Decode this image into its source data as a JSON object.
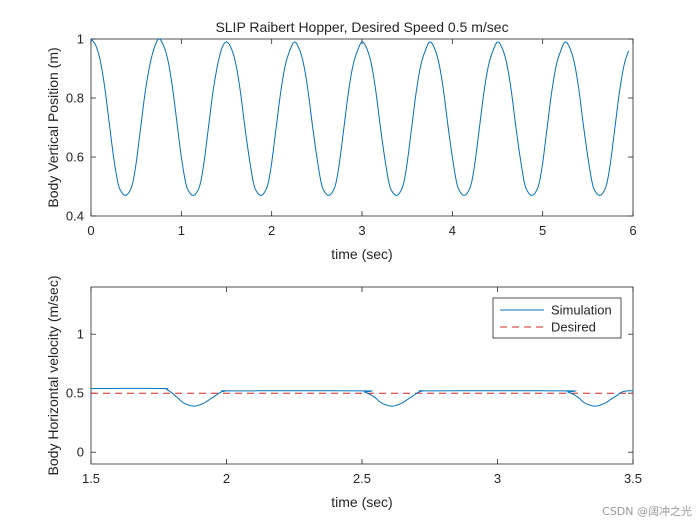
{
  "chart_data": [
    {
      "type": "line",
      "title": "SLIP Raibert Hopper, Desired Speed 0.5 m/sec",
      "xlabel": "time (sec)",
      "ylabel": "Body Vertical Position (m)",
      "xlim": [
        0,
        6
      ],
      "ylim": [
        0.4,
        1.0
      ],
      "xticks": [
        0,
        1,
        2,
        3,
        4,
        5,
        6
      ],
      "xtick_labels": [
        "0",
        "1",
        "2",
        "3",
        "4",
        "5",
        "6"
      ],
      "yticks": [
        0.4,
        0.6,
        0.8,
        1.0
      ],
      "ytick_labels": [
        "0.4",
        "0.6",
        "0.8",
        "1"
      ],
      "series": [
        {
          "name": "Body vertical position",
          "color": "#0072BD",
          "x": [
            0,
            0.05,
            0.1,
            0.15,
            0.2,
            0.25,
            0.3,
            0.34,
            0.38,
            0.42,
            0.46,
            0.5,
            0.55,
            0.6,
            0.65,
            0.7,
            0.75,
            0.8,
            0.85,
            0.9,
            0.95,
            1.0,
            1.05,
            1.09,
            1.13,
            1.17,
            1.21,
            1.25,
            1.3,
            1.35,
            1.4,
            1.45,
            1.5,
            1.55,
            1.6,
            1.65,
            1.7,
            1.75,
            1.8,
            1.84,
            1.88,
            1.92,
            1.96,
            2.0,
            2.05,
            2.1,
            2.15,
            2.2,
            2.25,
            2.3,
            2.35,
            2.4,
            2.45,
            2.5,
            2.55,
            2.59,
            2.63,
            2.67,
            2.71,
            2.75,
            2.8,
            2.85,
            2.9,
            2.95,
            3.0,
            3.05,
            3.1,
            3.15,
            3.2,
            3.25,
            3.3,
            3.34,
            3.38,
            3.42,
            3.46,
            3.5,
            3.55,
            3.6,
            3.65,
            3.7,
            3.75,
            3.8,
            3.85,
            3.9,
            3.95,
            4.0,
            4.05,
            4.09,
            4.13,
            4.17,
            4.21,
            4.25,
            4.3,
            4.35,
            4.4,
            4.45,
            4.5,
            4.55,
            4.6,
            4.65,
            4.7,
            4.75,
            4.8,
            4.84,
            4.88,
            4.92,
            4.96,
            5.0,
            5.05,
            5.1,
            5.15,
            5.2,
            5.25,
            5.3,
            5.35,
            5.4,
            5.45,
            5.5,
            5.55,
            5.59,
            5.63,
            5.67,
            5.71,
            5.75,
            5.8,
            5.85,
            5.9,
            5.95
          ],
          "y": [
            1.0,
            0.98,
            0.93,
            0.84,
            0.72,
            0.6,
            0.51,
            0.48,
            0.47,
            0.48,
            0.51,
            0.58,
            0.7,
            0.82,
            0.91,
            0.97,
            1.0,
            0.98,
            0.93,
            0.84,
            0.72,
            0.6,
            0.51,
            0.48,
            0.47,
            0.48,
            0.51,
            0.58,
            0.7,
            0.82,
            0.91,
            0.97,
            0.99,
            0.97,
            0.92,
            0.83,
            0.71,
            0.6,
            0.51,
            0.48,
            0.47,
            0.48,
            0.51,
            0.58,
            0.7,
            0.82,
            0.91,
            0.96,
            0.99,
            0.97,
            0.92,
            0.83,
            0.71,
            0.6,
            0.51,
            0.48,
            0.47,
            0.48,
            0.51,
            0.58,
            0.7,
            0.82,
            0.91,
            0.96,
            0.99,
            0.97,
            0.92,
            0.83,
            0.71,
            0.6,
            0.51,
            0.48,
            0.47,
            0.48,
            0.51,
            0.58,
            0.7,
            0.82,
            0.91,
            0.96,
            0.99,
            0.97,
            0.92,
            0.83,
            0.71,
            0.6,
            0.51,
            0.48,
            0.47,
            0.48,
            0.51,
            0.58,
            0.7,
            0.82,
            0.91,
            0.96,
            0.99,
            0.97,
            0.92,
            0.83,
            0.71,
            0.6,
            0.51,
            0.48,
            0.47,
            0.48,
            0.51,
            0.58,
            0.7,
            0.82,
            0.91,
            0.96,
            0.99,
            0.97,
            0.92,
            0.83,
            0.71,
            0.6,
            0.51,
            0.48,
            0.47,
            0.48,
            0.51,
            0.58,
            0.7,
            0.82,
            0.91,
            0.96
          ]
        }
      ]
    },
    {
      "type": "line",
      "title": "",
      "xlabel": "time (sec)",
      "ylabel": "Body Horizontal velocity (m/sec)",
      "xlim": [
        1.5,
        3.5
      ],
      "ylim": [
        -0.1,
        1.4
      ],
      "xticks": [
        1.5,
        2,
        2.5,
        3,
        3.5
      ],
      "xtick_labels": [
        "1.5",
        "2",
        "2.5",
        "3",
        "3.5"
      ],
      "yticks": [
        0,
        0.5,
        1
      ],
      "ytick_labels": [
        "0",
        "0.5",
        "1"
      ],
      "legend": {
        "position": "top-right",
        "entries": [
          "Simulation",
          "Desired"
        ]
      },
      "series": [
        {
          "name": "Simulation",
          "color": "#0072BD",
          "style": "solid",
          "x": [
            1.5,
            1.76,
            1.78,
            1.8,
            1.82,
            1.84,
            1.86,
            1.88,
            1.9,
            1.92,
            1.94,
            1.96,
            1.98,
            2.0,
            2.02,
            2.5,
            2.51,
            2.53,
            2.55,
            2.57,
            2.59,
            2.61,
            2.63,
            2.65,
            2.67,
            2.69,
            2.71,
            2.73,
            2.75,
            3.25,
            3.26,
            3.28,
            3.3,
            3.32,
            3.34,
            3.36,
            3.38,
            3.4,
            3.42,
            3.44,
            3.46,
            3.48,
            3.5
          ],
          "y": [
            0.54,
            0.54,
            0.53,
            0.5,
            0.46,
            0.42,
            0.4,
            0.39,
            0.4,
            0.42,
            0.45,
            0.48,
            0.51,
            0.52,
            0.52,
            0.52,
            0.51,
            0.49,
            0.46,
            0.42,
            0.4,
            0.39,
            0.4,
            0.42,
            0.45,
            0.48,
            0.51,
            0.52,
            0.52,
            0.52,
            0.51,
            0.49,
            0.46,
            0.42,
            0.4,
            0.39,
            0.4,
            0.42,
            0.45,
            0.48,
            0.51,
            0.52,
            0.52
          ]
        },
        {
          "name": "Desired",
          "color": "#D62728",
          "style": "dashed",
          "x": [
            1.5,
            3.5
          ],
          "y": [
            0.5,
            0.5
          ]
        }
      ]
    }
  ],
  "watermark": "CSDN @阔冲之光"
}
